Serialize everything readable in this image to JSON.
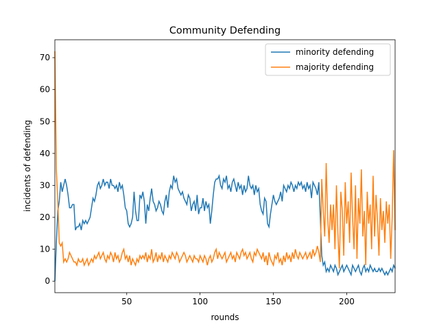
{
  "chart_data": {
    "type": "line",
    "title": "Community Defending",
    "xlabel": "rounds",
    "ylabel": "incidents of defending",
    "x": [
      1,
      2,
      3,
      4,
      5,
      6,
      7,
      8,
      9,
      10,
      11,
      12,
      13,
      14,
      15,
      16,
      17,
      18,
      19,
      20,
      21,
      22,
      23,
      24,
      25,
      26,
      27,
      28,
      29,
      30,
      31,
      32,
      33,
      34,
      35,
      36,
      37,
      38,
      39,
      40,
      41,
      42,
      43,
      44,
      45,
      46,
      47,
      48,
      49,
      50,
      51,
      52,
      53,
      54,
      55,
      56,
      57,
      58,
      59,
      60,
      61,
      62,
      63,
      64,
      65,
      66,
      67,
      68,
      69,
      70,
      71,
      72,
      73,
      74,
      75,
      76,
      77,
      78,
      79,
      80,
      81,
      82,
      83,
      84,
      85,
      86,
      87,
      88,
      89,
      90,
      91,
      92,
      93,
      94,
      95,
      96,
      97,
      98,
      99,
      100,
      101,
      102,
      103,
      104,
      105,
      106,
      107,
      108,
      109,
      110,
      111,
      112,
      113,
      114,
      115,
      116,
      117,
      118,
      119,
      120,
      121,
      122,
      123,
      124,
      125,
      126,
      127,
      128,
      129,
      130,
      131,
      132,
      133,
      134,
      135,
      136,
      137,
      138,
      139,
      140,
      141,
      142,
      143,
      144,
      145,
      146,
      147,
      148,
      149,
      150,
      151,
      152,
      153,
      154,
      155,
      156,
      157,
      158,
      159,
      160,
      161,
      162,
      163,
      164,
      165,
      166,
      167,
      168,
      169,
      170,
      171,
      172,
      173,
      174,
      175,
      176,
      177,
      178,
      179,
      180,
      181,
      182,
      183,
      184,
      185,
      186,
      187,
      188,
      189,
      190,
      191,
      192,
      193,
      194,
      195,
      196,
      197,
      198,
      199,
      200,
      201,
      202,
      203,
      204,
      205,
      206,
      207,
      208,
      209,
      210,
      211,
      212,
      213,
      214,
      215,
      216,
      217,
      218,
      219,
      220,
      221,
      222,
      223,
      224,
      225,
      226,
      227,
      228,
      229,
      230,
      231,
      232,
      233
    ],
    "series": [
      {
        "name": "minority defending",
        "color": "#1f77b4",
        "values": [
          0,
          12,
          22,
          25,
          31,
          28,
          30,
          32,
          30,
          27,
          23,
          23,
          24,
          24,
          16,
          17,
          17,
          18,
          16,
          19,
          18,
          19,
          18,
          19,
          20,
          23,
          26,
          25,
          27,
          30,
          31,
          29,
          30,
          32,
          30,
          31,
          31,
          29,
          32,
          30,
          30,
          29,
          30,
          28,
          31,
          29,
          30,
          27,
          23,
          22,
          18,
          17,
          18,
          20,
          28,
          22,
          19,
          19,
          27,
          26,
          28,
          25,
          18,
          24,
          22,
          26,
          29,
          25,
          24,
          22,
          23,
          25,
          24,
          22,
          21,
          25,
          27,
          23,
          28,
          30,
          29,
          33,
          31,
          32,
          29,
          28,
          27,
          28,
          26,
          25,
          24,
          27,
          26,
          22,
          24,
          25,
          22,
          27,
          21,
          23,
          23,
          26,
          22,
          25,
          23,
          24,
          18,
          22,
          27,
          31,
          32,
          32,
          33,
          30,
          29,
          32,
          31,
          33,
          29,
          30,
          28,
          31,
          32,
          30,
          28,
          31,
          29,
          30,
          27,
          30,
          28,
          29,
          33,
          30,
          29,
          30,
          27,
          30,
          28,
          29,
          24,
          22,
          21,
          26,
          25,
          18,
          17,
          21,
          24,
          27,
          25,
          24,
          25,
          26,
          28,
          25,
          30,
          29,
          28,
          30,
          29,
          31,
          30,
          28,
          30,
          29,
          31,
          30,
          31,
          29,
          30,
          28,
          31,
          29,
          30,
          26,
          31,
          30,
          29,
          27,
          31,
          20,
          8,
          5,
          6,
          3,
          4,
          3,
          5,
          4,
          3,
          5,
          4,
          2,
          3,
          4,
          5,
          3,
          4,
          5,
          4,
          3,
          2,
          5,
          4,
          3,
          4,
          5,
          3,
          2,
          4,
          5,
          3,
          4,
          3,
          5,
          4,
          3,
          4,
          3,
          3,
          4,
          3,
          4,
          3,
          2,
          3,
          2,
          3,
          4,
          3,
          5,
          4
        ]
      },
      {
        "name": "majority defending",
        "color": "#ff7f0e",
        "values": [
          72,
          35,
          25,
          12,
          11,
          12,
          6,
          7,
          6,
          7,
          9,
          8,
          7,
          6,
          6,
          5,
          7,
          6,
          6,
          7,
          5,
          6,
          7,
          5,
          6,
          7,
          6,
          8,
          7,
          8,
          9,
          7,
          8,
          9,
          7,
          6,
          8,
          7,
          9,
          8,
          6,
          9,
          7,
          8,
          6,
          7,
          9,
          10,
          7,
          8,
          6,
          8,
          5,
          7,
          6,
          5,
          7,
          6,
          8,
          7,
          8,
          7,
          9,
          6,
          8,
          7,
          10,
          6,
          7,
          9,
          6,
          8,
          7,
          9,
          6,
          8,
          7,
          6,
          8,
          7,
          9,
          8,
          7,
          9,
          8,
          6,
          7,
          8,
          9,
          8,
          6,
          7,
          8,
          7,
          6,
          8,
          7,
          7,
          6,
          8,
          7,
          6,
          8,
          7,
          5,
          7,
          8,
          6,
          7,
          9,
          10,
          7,
          9,
          8,
          7,
          8,
          9,
          6,
          7,
          8,
          9,
          7,
          8,
          6,
          9,
          8,
          7,
          9,
          10,
          8,
          9,
          7,
          8,
          9,
          7,
          6,
          9,
          8,
          10,
          9,
          8,
          7,
          9,
          6,
          8,
          5,
          9,
          7,
          6,
          5,
          8,
          7,
          9,
          6,
          7,
          5,
          8,
          6,
          9,
          7,
          8,
          6,
          9,
          7,
          10,
          8,
          7,
          9,
          8,
          7,
          8,
          9,
          7,
          8,
          9,
          7,
          10,
          8,
          9,
          11,
          9,
          6,
          32,
          22,
          14,
          37,
          20,
          12,
          24,
          16,
          24,
          10,
          30,
          15,
          4,
          28,
          22,
          8,
          31,
          18,
          25,
          12,
          34,
          20,
          10,
          30,
          7,
          26,
          18,
          35,
          14,
          22,
          5,
          28,
          18,
          24,
          10,
          33,
          14,
          27,
          19,
          8,
          26,
          16,
          22,
          12,
          25,
          18,
          24,
          7,
          20,
          41,
          16
        ]
      }
    ],
    "xlim": [
      1,
      233
    ],
    "xticks": [
      50,
      100,
      150,
      200
    ],
    "ylim": [
      -3.6,
      75.6
    ],
    "yticks": [
      0,
      10,
      20,
      30,
      40,
      50,
      60,
      70
    ],
    "legend": "upper right"
  }
}
